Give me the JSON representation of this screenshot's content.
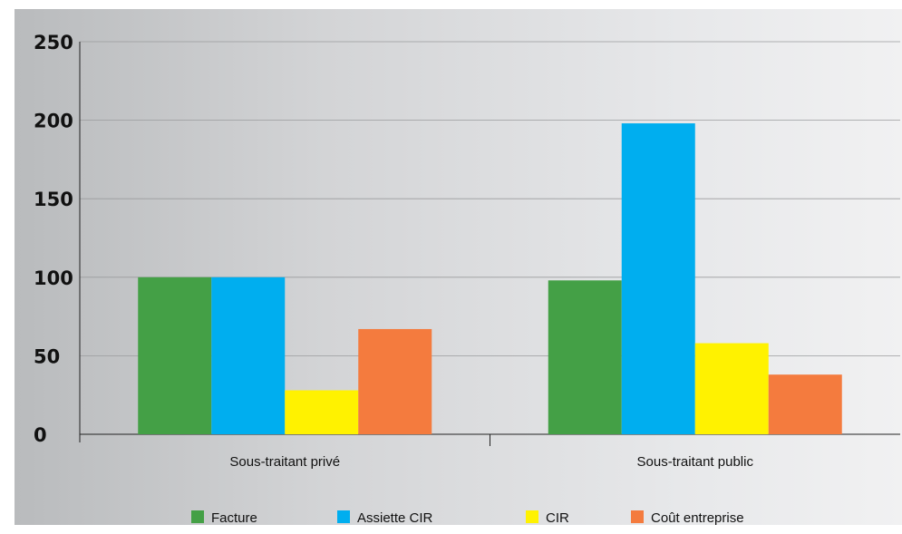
{
  "chart_data": {
    "type": "bar",
    "title": "",
    "xlabel": "",
    "ylabel": "",
    "ylim": [
      0,
      250
    ],
    "yticks": [
      0,
      50,
      100,
      150,
      200,
      250
    ],
    "grid": true,
    "legend_position": "bottom",
    "categories": [
      "Sous-traitant privé",
      "Sous-traitant public"
    ],
    "series": [
      {
        "name": "Facture",
        "color": "#44a046",
        "values": [
          100,
          98
        ]
      },
      {
        "name": "Assiette CIR",
        "color": "#00aeef",
        "values": [
          100,
          198
        ]
      },
      {
        "name": "CIR",
        "color": "#fff200",
        "values": [
          28,
          58
        ]
      },
      {
        "name": "Coût entreprise",
        "color": "#f47b3e",
        "values": [
          67,
          38
        ]
      }
    ]
  }
}
